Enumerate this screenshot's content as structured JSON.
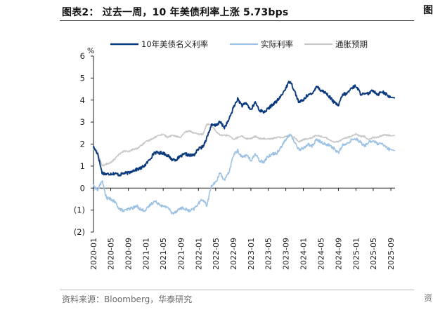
{
  "header": {
    "title": "图表2：  过去一周，10 年美债利率上涨 5.73bps"
  },
  "footer": {
    "source": "资料来源：Bloomberg，华泰研究"
  },
  "edge_fragments": {
    "top": "图",
    "bottom": "资"
  },
  "chart_data": {
    "type": "line",
    "title": "过去一周，10 年美债利率上涨 5.73bps",
    "ylabel": "%",
    "xlabel": "",
    "ylim": [
      -2,
      6
    ],
    "yticks": [
      {
        "v": 6,
        "label": "6"
      },
      {
        "v": 5,
        "label": "5"
      },
      {
        "v": 4,
        "label": "4"
      },
      {
        "v": 3,
        "label": "3"
      },
      {
        "v": 2,
        "label": "2"
      },
      {
        "v": 1,
        "label": "1"
      },
      {
        "v": 0,
        "label": "0"
      },
      {
        "v": -1,
        "label": "(1)"
      },
      {
        "v": -2,
        "label": "(2)"
      }
    ],
    "xticks": [
      "2020-01",
      "2020-05",
      "2020-09",
      "2021-01",
      "2021-05",
      "2021-09",
      "2022-01",
      "2022-05",
      "2022-09",
      "2023-01",
      "2023-05",
      "2023-09",
      "2024-01",
      "2024-05",
      "2024-09",
      "2025-01",
      "2025-05",
      "2025-09"
    ],
    "x_start": "2020-01-02",
    "x_end": "2025-09-30",
    "grid": false,
    "legend_position": "top",
    "x": [
      "2020-01",
      "2020-02",
      "2020-03",
      "2020-04",
      "2020-05",
      "2020-06",
      "2020-07",
      "2020-08",
      "2020-09",
      "2020-10",
      "2020-11",
      "2020-12",
      "2021-01",
      "2021-02",
      "2021-03",
      "2021-04",
      "2021-05",
      "2021-06",
      "2021-07",
      "2021-08",
      "2021-09",
      "2021-10",
      "2021-11",
      "2021-12",
      "2022-01",
      "2022-02",
      "2022-03",
      "2022-04",
      "2022-05",
      "2022-06",
      "2022-07",
      "2022-08",
      "2022-09",
      "2022-10",
      "2022-11",
      "2022-12",
      "2023-01",
      "2023-02",
      "2023-03",
      "2023-04",
      "2023-05",
      "2023-06",
      "2023-07",
      "2023-08",
      "2023-09",
      "2023-10",
      "2023-11",
      "2023-12",
      "2024-01",
      "2024-02",
      "2024-03",
      "2024-04",
      "2024-05",
      "2024-06",
      "2024-07",
      "2024-08",
      "2024-09",
      "2024-10",
      "2024-11",
      "2024-12",
      "2025-01",
      "2025-02",
      "2025-03",
      "2025-04",
      "2025-05",
      "2025-06",
      "2025-07",
      "2025-08",
      "2025-09"
    ],
    "series": [
      {
        "name": "10年美债名义利率",
        "color": "#0b3a7e",
        "values": [
          1.88,
          1.55,
          0.7,
          0.63,
          0.66,
          0.66,
          0.6,
          0.68,
          0.68,
          0.8,
          0.85,
          0.92,
          1.08,
          1.35,
          1.62,
          1.6,
          1.6,
          1.48,
          1.3,
          1.3,
          1.45,
          1.55,
          1.48,
          1.5,
          1.78,
          1.88,
          2.3,
          2.85,
          2.85,
          3.0,
          2.75,
          3.1,
          3.65,
          4.05,
          3.75,
          3.85,
          3.55,
          3.9,
          3.55,
          3.45,
          3.6,
          3.8,
          3.95,
          4.2,
          4.55,
          4.9,
          4.4,
          3.9,
          4.0,
          4.25,
          4.25,
          4.65,
          4.45,
          4.35,
          4.15,
          3.9,
          3.75,
          4.25,
          4.3,
          4.55,
          4.65,
          4.3,
          4.25,
          4.3,
          4.45,
          4.25,
          4.4,
          4.25,
          4.1
        ]
      },
      {
        "name": "实际利率",
        "color": "#9cc1e3",
        "values": [
          0.1,
          -0.1,
          0.35,
          -0.45,
          -0.5,
          -0.65,
          -0.95,
          -1.05,
          -0.95,
          -0.9,
          -0.82,
          -1.0,
          -1.0,
          -0.75,
          -0.6,
          -0.7,
          -0.85,
          -0.85,
          -1.15,
          -1.05,
          -0.9,
          -0.95,
          -1.05,
          -0.95,
          -0.7,
          -0.5,
          -0.8,
          0.1,
          0.25,
          0.7,
          0.35,
          0.7,
          1.5,
          1.7,
          1.4,
          1.5,
          1.25,
          1.55,
          1.25,
          1.2,
          1.45,
          1.55,
          1.6,
          1.9,
          2.2,
          2.45,
          2.1,
          1.75,
          1.8,
          2.0,
          1.9,
          2.2,
          2.1,
          2.0,
          1.95,
          1.8,
          1.6,
          1.95,
          2.0,
          2.2,
          2.25,
          2.1,
          1.9,
          2.1,
          2.15,
          2.0,
          2.0,
          1.85,
          1.7
        ]
      },
      {
        "name": "通胀预期",
        "color": "#c8c8c8",
        "values": [
          1.8,
          1.65,
          1.0,
          1.1,
          1.15,
          1.35,
          1.55,
          1.7,
          1.65,
          1.75,
          1.8,
          1.95,
          2.1,
          2.2,
          2.3,
          2.4,
          2.45,
          2.3,
          2.4,
          2.35,
          2.3,
          2.55,
          2.6,
          2.5,
          2.45,
          2.45,
          2.9,
          2.9,
          2.6,
          2.4,
          2.4,
          2.4,
          2.2,
          2.3,
          2.35,
          2.25,
          2.25,
          2.35,
          2.25,
          2.25,
          2.25,
          2.25,
          2.3,
          2.3,
          2.35,
          2.4,
          2.3,
          2.1,
          2.2,
          2.25,
          2.3,
          2.4,
          2.35,
          2.3,
          2.2,
          2.1,
          2.1,
          2.25,
          2.3,
          2.35,
          2.45,
          2.35,
          2.35,
          2.2,
          2.3,
          2.3,
          2.4,
          2.4,
          2.4
        ]
      }
    ]
  }
}
